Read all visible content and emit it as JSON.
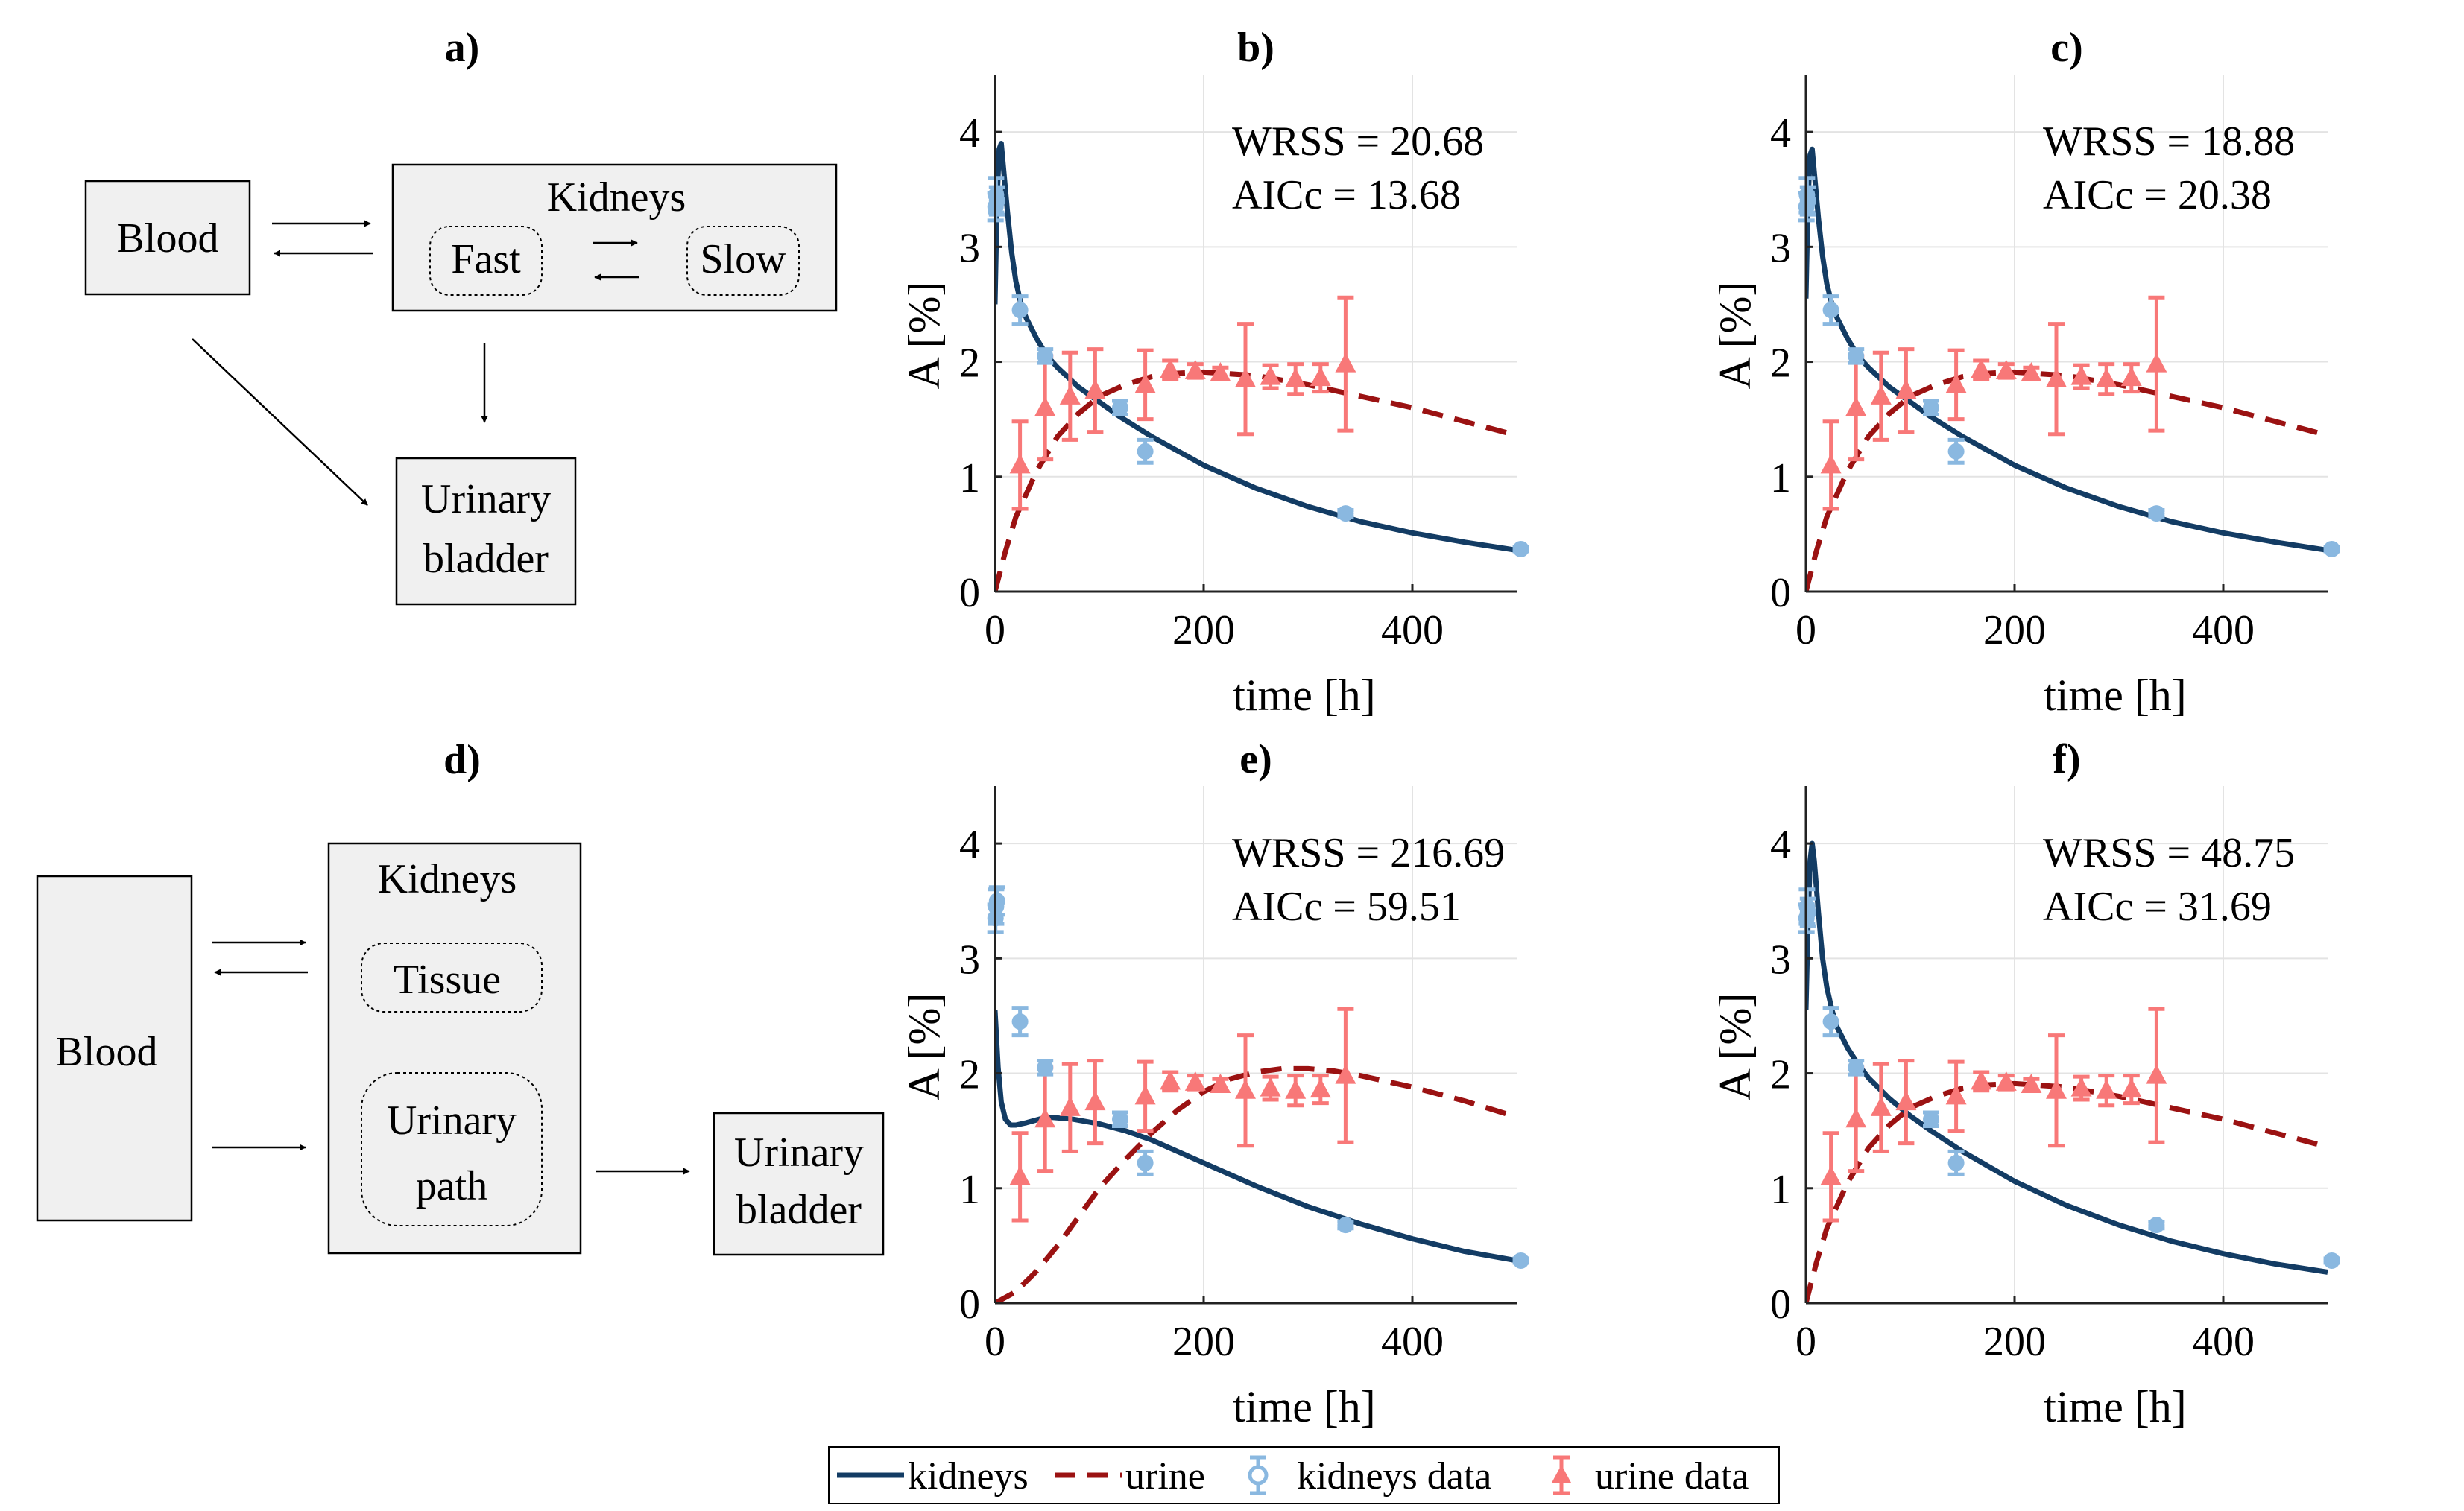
{
  "panel_labels": {
    "a": "a)",
    "b": "b)",
    "c": "c)",
    "d": "d)",
    "e": "e)",
    "f": "f)"
  },
  "diagram_a": {
    "blood": "Blood",
    "kidneys": "Kidneys",
    "fast": "Fast",
    "slow": "Slow",
    "bladder_line1": "Urinary",
    "bladder_line2": "bladder"
  },
  "diagram_d": {
    "blood": "Blood",
    "kidneys": "Kidneys",
    "tissue": "Tissue",
    "path_line1": "Urinary",
    "path_line2": "path",
    "bladder_line1": "Urinary",
    "bladder_line2": "bladder"
  },
  "legend": {
    "kidneys": "kidneys",
    "urine": "urine",
    "kidneys_data": "kidneys data",
    "urine_data": "urine data"
  },
  "colors": {
    "kidneys_line": "#133c64",
    "urine_line": "#9b1212",
    "kidneys_data": "#8ab8e0",
    "urine_data": "#f87878",
    "box_fill": "#f0f0f0",
    "grid": "#e3e3e3"
  },
  "chart_data": [
    {
      "id": "b",
      "type": "line",
      "title": "b)",
      "xlabel": "time [h]",
      "ylabel": "A [%]",
      "xlim": [
        0,
        500
      ],
      "ylim": [
        0,
        4.5
      ],
      "xticks": [
        0,
        200,
        400
      ],
      "yticks": [
        0,
        1,
        2,
        3,
        4
      ],
      "grid": true,
      "annotation": [
        "WRSS = 20.68",
        "AICc = 13.68"
      ],
      "series": [
        {
          "name": "kidneys",
          "style": "solid",
          "x": [
            0,
            2,
            4,
            6,
            8,
            12,
            16,
            20,
            25,
            30,
            40,
            50,
            60,
            80,
            100,
            120,
            150,
            200,
            250,
            300,
            350,
            400,
            450,
            500
          ],
          "y": [
            2.5,
            3.4,
            3.85,
            3.9,
            3.7,
            3.3,
            2.95,
            2.7,
            2.5,
            2.38,
            2.2,
            2.05,
            1.95,
            1.78,
            1.65,
            1.52,
            1.35,
            1.1,
            0.9,
            0.74,
            0.61,
            0.51,
            0.43,
            0.36
          ]
        },
        {
          "name": "urine",
          "style": "dashed",
          "x": [
            0,
            10,
            20,
            40,
            60,
            80,
            100,
            125,
            150,
            175,
            200,
            250,
            300,
            350,
            400,
            450,
            500
          ],
          "y": [
            0,
            0.35,
            0.65,
            1.05,
            1.35,
            1.55,
            1.7,
            1.8,
            1.87,
            1.9,
            1.91,
            1.88,
            1.8,
            1.7,
            1.6,
            1.48,
            1.36
          ]
        }
      ],
      "kidneys_data": {
        "x": [
          0.5,
          1,
          2,
          24,
          48,
          120,
          144,
          336,
          504
        ],
        "y": [
          3.35,
          3.45,
          3.4,
          2.45,
          2.05,
          1.6,
          1.22,
          0.68,
          0.37
        ],
        "err": [
          0.12,
          0.15,
          0.12,
          0.12,
          0.06,
          0.06,
          0.1,
          0.03,
          0.02
        ]
      },
      "urine_data": {
        "x": [
          24,
          48,
          72,
          96,
          144,
          168,
          192,
          216,
          240,
          264,
          288,
          312,
          336
        ],
        "y": [
          1.1,
          1.6,
          1.7,
          1.75,
          1.8,
          1.93,
          1.92,
          1.9,
          1.85,
          1.87,
          1.85,
          1.86,
          1.98
        ],
        "err": [
          0.38,
          0.45,
          0.38,
          0.36,
          0.3,
          0.08,
          0.06,
          0.05,
          0.48,
          0.1,
          0.13,
          0.12,
          0.58
        ]
      }
    },
    {
      "id": "c",
      "type": "line",
      "title": "c)",
      "xlabel": "time [h]",
      "ylabel": "A [%]",
      "xlim": [
        0,
        500
      ],
      "ylim": [
        0,
        4.5
      ],
      "xticks": [
        0,
        200,
        400
      ],
      "yticks": [
        0,
        1,
        2,
        3,
        4
      ],
      "grid": true,
      "annotation": [
        "WRSS = 18.88",
        "AICc = 20.38"
      ],
      "series": [
        {
          "name": "kidneys",
          "style": "solid",
          "x": [
            0,
            2,
            4,
            6,
            8,
            12,
            16,
            20,
            25,
            30,
            40,
            50,
            60,
            80,
            100,
            120,
            150,
            200,
            250,
            300,
            350,
            400,
            450,
            500
          ],
          "y": [
            2.55,
            3.4,
            3.8,
            3.85,
            3.65,
            3.25,
            2.92,
            2.68,
            2.5,
            2.38,
            2.2,
            2.05,
            1.95,
            1.78,
            1.65,
            1.52,
            1.35,
            1.1,
            0.9,
            0.74,
            0.61,
            0.51,
            0.43,
            0.36
          ]
        },
        {
          "name": "urine",
          "style": "dashed",
          "x": [
            0,
            10,
            20,
            40,
            60,
            80,
            100,
            125,
            150,
            175,
            200,
            250,
            300,
            350,
            400,
            450,
            500
          ],
          "y": [
            0,
            0.35,
            0.65,
            1.05,
            1.35,
            1.55,
            1.7,
            1.8,
            1.87,
            1.9,
            1.91,
            1.88,
            1.8,
            1.7,
            1.6,
            1.48,
            1.36
          ]
        }
      ],
      "kidneys_data": {
        "x": [
          0.5,
          1,
          2,
          24,
          48,
          120,
          144,
          336,
          504
        ],
        "y": [
          3.35,
          3.45,
          3.4,
          2.45,
          2.05,
          1.6,
          1.22,
          0.68,
          0.37
        ],
        "err": [
          0.12,
          0.15,
          0.12,
          0.12,
          0.06,
          0.06,
          0.1,
          0.03,
          0.02
        ]
      },
      "urine_data": {
        "x": [
          24,
          48,
          72,
          96,
          144,
          168,
          192,
          216,
          240,
          264,
          288,
          312,
          336
        ],
        "y": [
          1.1,
          1.6,
          1.7,
          1.75,
          1.8,
          1.93,
          1.92,
          1.9,
          1.85,
          1.87,
          1.85,
          1.86,
          1.98
        ],
        "err": [
          0.38,
          0.45,
          0.38,
          0.36,
          0.3,
          0.08,
          0.06,
          0.05,
          0.48,
          0.1,
          0.13,
          0.12,
          0.58
        ]
      }
    },
    {
      "id": "e",
      "type": "line",
      "title": "e)",
      "xlabel": "time [h]",
      "ylabel": "A [%]",
      "xlim": [
        0,
        500
      ],
      "ylim": [
        0,
        4.5
      ],
      "xticks": [
        0,
        200,
        400
      ],
      "yticks": [
        0,
        1,
        2,
        3,
        4
      ],
      "grid": true,
      "annotation": [
        "WRSS = 216.69",
        "AICc = 59.51"
      ],
      "series": [
        {
          "name": "kidneys",
          "style": "solid",
          "x": [
            0,
            3,
            6,
            10,
            15,
            20,
            30,
            50,
            75,
            100,
            125,
            150,
            200,
            250,
            300,
            350,
            400,
            450,
            500
          ],
          "y": [
            2.55,
            2.05,
            1.75,
            1.6,
            1.55,
            1.55,
            1.57,
            1.62,
            1.6,
            1.56,
            1.5,
            1.42,
            1.22,
            1.02,
            0.84,
            0.69,
            0.56,
            0.45,
            0.37
          ]
        },
        {
          "name": "urine",
          "style": "dashed",
          "x": [
            0,
            20,
            40,
            60,
            80,
            100,
            125,
            150,
            175,
            200,
            225,
            250,
            275,
            300,
            325,
            350,
            400,
            450,
            500
          ],
          "y": [
            0,
            0.1,
            0.28,
            0.5,
            0.75,
            1.0,
            1.25,
            1.48,
            1.68,
            1.84,
            1.95,
            2.01,
            2.04,
            2.04,
            2.02,
            1.98,
            1.88,
            1.76,
            1.62
          ]
        }
      ],
      "kidneys_data": {
        "x": [
          0.5,
          1,
          2,
          24,
          48,
          120,
          144,
          336,
          504
        ],
        "y": [
          3.35,
          3.45,
          3.5,
          2.45,
          2.05,
          1.6,
          1.22,
          0.68,
          0.37
        ],
        "err": [
          0.12,
          0.15,
          0.12,
          0.12,
          0.06,
          0.06,
          0.1,
          0.03,
          0.02
        ]
      },
      "urine_data": {
        "x": [
          24,
          48,
          72,
          96,
          144,
          168,
          192,
          216,
          240,
          264,
          288,
          312,
          336
        ],
        "y": [
          1.1,
          1.6,
          1.7,
          1.75,
          1.8,
          1.93,
          1.92,
          1.9,
          1.85,
          1.87,
          1.85,
          1.86,
          1.98
        ],
        "err": [
          0.38,
          0.45,
          0.38,
          0.36,
          0.3,
          0.08,
          0.06,
          0.05,
          0.48,
          0.1,
          0.13,
          0.12,
          0.58
        ]
      }
    },
    {
      "id": "f",
      "type": "line",
      "title": "f)",
      "xlabel": "time [h]",
      "ylabel": "A [%]",
      "xlim": [
        0,
        500
      ],
      "ylim": [
        0,
        4.5
      ],
      "xticks": [
        0,
        200,
        400
      ],
      "yticks": [
        0,
        1,
        2,
        3,
        4
      ],
      "grid": true,
      "annotation": [
        "WRSS = 48.75",
        "AICc = 31.69"
      ],
      "series": [
        {
          "name": "kidneys",
          "style": "solid",
          "x": [
            0,
            2,
            4,
            6,
            8,
            12,
            16,
            20,
            25,
            30,
            40,
            50,
            60,
            80,
            100,
            120,
            150,
            200,
            250,
            300,
            350,
            400,
            450,
            500
          ],
          "y": [
            2.55,
            3.3,
            3.85,
            4.0,
            3.85,
            3.4,
            3.0,
            2.75,
            2.55,
            2.4,
            2.22,
            2.08,
            1.96,
            1.78,
            1.63,
            1.5,
            1.32,
            1.06,
            0.85,
            0.68,
            0.54,
            0.43,
            0.34,
            0.27
          ]
        },
        {
          "name": "urine",
          "style": "dashed",
          "x": [
            0,
            10,
            20,
            40,
            60,
            80,
            100,
            125,
            150,
            175,
            200,
            250,
            300,
            350,
            400,
            450,
            500
          ],
          "y": [
            0,
            0.35,
            0.65,
            1.05,
            1.35,
            1.55,
            1.7,
            1.8,
            1.87,
            1.9,
            1.91,
            1.88,
            1.8,
            1.7,
            1.6,
            1.48,
            1.36
          ]
        }
      ],
      "kidneys_data": {
        "x": [
          0.5,
          1,
          2,
          24,
          48,
          120,
          144,
          336,
          504
        ],
        "y": [
          3.35,
          3.45,
          3.4,
          2.45,
          2.05,
          1.6,
          1.22,
          0.68,
          0.37
        ],
        "err": [
          0.12,
          0.15,
          0.12,
          0.12,
          0.06,
          0.06,
          0.1,
          0.03,
          0.02
        ]
      },
      "urine_data": {
        "x": [
          24,
          48,
          72,
          96,
          144,
          168,
          192,
          216,
          240,
          264,
          288,
          312,
          336
        ],
        "y": [
          1.1,
          1.6,
          1.7,
          1.75,
          1.8,
          1.93,
          1.92,
          1.9,
          1.85,
          1.87,
          1.85,
          1.86,
          1.98
        ],
        "err": [
          0.38,
          0.45,
          0.38,
          0.36,
          0.3,
          0.08,
          0.06,
          0.05,
          0.48,
          0.1,
          0.13,
          0.12,
          0.58
        ]
      }
    }
  ]
}
